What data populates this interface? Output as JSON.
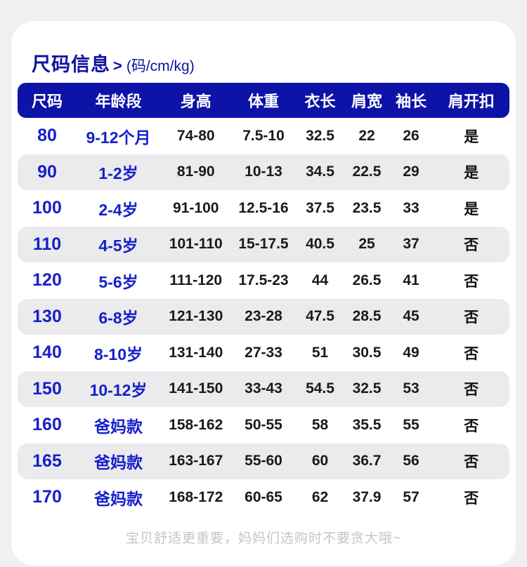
{
  "header": {
    "title": "尺码信息",
    "arrow": ">",
    "unit_hint": "(码/cm/kg)"
  },
  "footer": {
    "note": "宝贝舒适更重要，妈妈们选购时不要贪大哦~"
  },
  "colors": {
    "page_background": "#f0f0f1",
    "card_background": "#ffffff",
    "header_band": "#0e13a8",
    "title_blue": "#0d12a5",
    "cell_blue": "#1620c8",
    "stripe_gray": "#ebebed",
    "body_text": "#1a1a1a",
    "footer_gray": "#c5c5c5"
  },
  "chart_data": {
    "type": "table",
    "title": "尺码信息 (码/cm/kg)",
    "columns": [
      "尺码",
      "年龄段",
      "身高",
      "体重",
      "衣长",
      "肩宽",
      "袖长",
      "肩开扣"
    ],
    "rows": [
      [
        "80",
        "9-12个月",
        "74-80",
        "7.5-10",
        "32.5",
        "22",
        "26",
        "是"
      ],
      [
        "90",
        "1-2岁",
        "81-90",
        "10-13",
        "34.5",
        "22.5",
        "29",
        "是"
      ],
      [
        "100",
        "2-4岁",
        "91-100",
        "12.5-16",
        "37.5",
        "23.5",
        "33",
        "是"
      ],
      [
        "110",
        "4-5岁",
        "101-110",
        "15-17.5",
        "40.5",
        "25",
        "37",
        "否"
      ],
      [
        "120",
        "5-6岁",
        "111-120",
        "17.5-23",
        "44",
        "26.5",
        "41",
        "否"
      ],
      [
        "130",
        "6-8岁",
        "121-130",
        "23-28",
        "47.5",
        "28.5",
        "45",
        "否"
      ],
      [
        "140",
        "8-10岁",
        "131-140",
        "27-33",
        "51",
        "30.5",
        "49",
        "否"
      ],
      [
        "150",
        "10-12岁",
        "141-150",
        "33-43",
        "54.5",
        "32.5",
        "53",
        "否"
      ],
      [
        "160",
        "爸妈款",
        "158-162",
        "50-55",
        "58",
        "35.5",
        "55",
        "否"
      ],
      [
        "165",
        "爸妈款",
        "163-167",
        "55-60",
        "60",
        "36.7",
        "56",
        "否"
      ],
      [
        "170",
        "爸妈款",
        "168-172",
        "60-65",
        "62",
        "37.9",
        "57",
        "否"
      ]
    ],
    "layout": {
      "striped_rows": "even (2nd, 4th, ...)",
      "header_style": "white bold text on deep blue rounded band"
    }
  }
}
